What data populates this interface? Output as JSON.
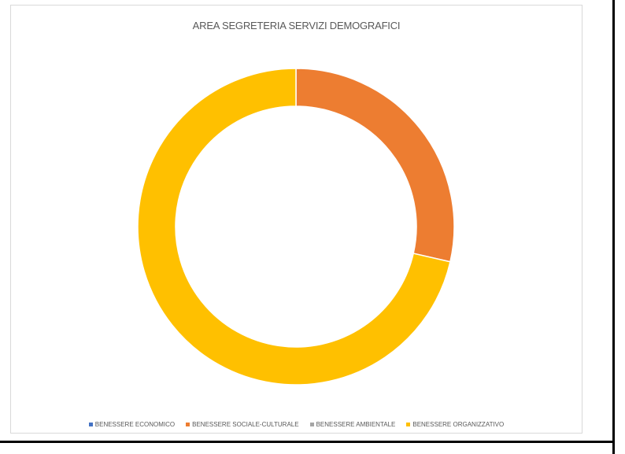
{
  "chart_data": {
    "type": "pie",
    "variant": "doughnut",
    "title": "AREA SEGRETERIA SERVIZI DEMOGRAFICI",
    "legend_position": "bottom",
    "series": [
      {
        "name": "BENESSERE ECONOMICO",
        "value": 0,
        "color": "#4472C4"
      },
      {
        "name": "BENESSERE SOCIALE-CULTURALE",
        "value": 2,
        "color": "#ED7D31"
      },
      {
        "name": "BENESSERE AMBIENTALE",
        "value": 0,
        "color": "#A5A5A5"
      },
      {
        "name": "BENESSERE ORGANIZZATIVO",
        "value": 5,
        "color": "#FFC000"
      }
    ]
  }
}
